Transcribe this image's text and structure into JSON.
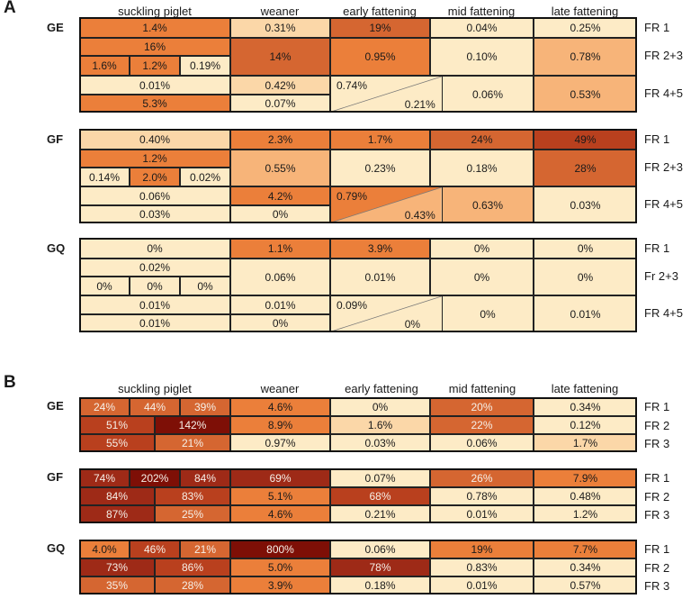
{
  "panels": {
    "A": {
      "letter": "A",
      "columns": [
        "suckling piglet",
        "weaner",
        "early fattening",
        "mid fattening",
        "late fattening"
      ],
      "groups": [
        {
          "title": "GE",
          "row_labels": [
            "FR 1",
            "FR 2+3",
            "FR 4+5"
          ],
          "cells": [
            "1.4%",
            "0.31%",
            "19%",
            "0.04%",
            "0.25%",
            "16%",
            "1.6%",
            "1.2%",
            "0.19%",
            "14%",
            "0.95%",
            "0.10%",
            "0.78%",
            "0.01%",
            "5.3%",
            "0.42%",
            "0.07%",
            "0.74%",
            "0.21%",
            "0.06%",
            "0.53%"
          ]
        },
        {
          "title": "GF",
          "row_labels": [
            "FR 1",
            "FR 2+3",
            "FR 4+5"
          ],
          "cells": [
            "0.40%",
            "2.3%",
            "1.7%",
            "24%",
            "49%",
            "1.2%",
            "0.14%",
            "2.0%",
            "0.02%",
            "0.55%",
            "0.23%",
            "0.18%",
            "28%",
            "0.06%",
            "0.03%",
            "4.2%",
            "0%",
            "0.79%",
            "0.43%",
            "0.63%",
            "0.03%"
          ]
        },
        {
          "title": "GQ",
          "row_labels": [
            "FR 1",
            "Fr 2+3",
            "FR 4+5"
          ],
          "cells": [
            "0%",
            "1.1%",
            "3.9%",
            "0%",
            "0%",
            "0.02%",
            "0%",
            "0%",
            "0%",
            "0.06%",
            "0.01%",
            "0%",
            "0%",
            "0.01%",
            "0.01%",
            "0.01%",
            "0%",
            "0.09%",
            "0%",
            "0%",
            "0.01%"
          ]
        }
      ]
    },
    "B": {
      "letter": "B",
      "columns": [
        "suckling piglet",
        "weaner",
        "early fattening",
        "mid fattening",
        "late fattening"
      ],
      "groups": [
        {
          "title": "GE",
          "row_labels": [
            "FR 1",
            "FR 2",
            "FR 3"
          ],
          "cells": [
            "24%",
            "44%",
            "39%",
            "4.6%",
            "0%",
            "20%",
            "0.34%",
            "51%",
            "142%",
            "8.9%",
            "1.6%",
            "22%",
            "0.12%",
            "55%",
            "21%",
            "0.97%",
            "0.03%",
            "0.06%",
            "1.7%"
          ]
        },
        {
          "title": "GF",
          "row_labels": [
            "FR 1",
            "FR 2",
            "FR 3"
          ],
          "cells": [
            "74%",
            "202%",
            "84%",
            "69%",
            "0.07%",
            "26%",
            "7.9%",
            "84%",
            "83%",
            "5.1%",
            "68%",
            "0.78%",
            "0.48%",
            "87%",
            "25%",
            "4.6%",
            "0.21%",
            "0.01%",
            "1.2%"
          ]
        },
        {
          "title": "GQ",
          "row_labels": [
            "FR 1",
            "FR 2",
            "FR 3"
          ],
          "cells": [
            "4.0%",
            "46%",
            "21%",
            "800%",
            "0.06%",
            "19%",
            "7.7%",
            "73%",
            "86%",
            "5.0%",
            "78%",
            "0.83%",
            "0.34%",
            "35%",
            "28%",
            "3.9%",
            "0.18%",
            "0.01%",
            "0.57%"
          ]
        }
      ]
    }
  },
  "colors": {
    "cream": "#fdebc6",
    "pale": "#fbd7a8",
    "light": "#f7b479",
    "mid": "#f08f45",
    "orange": "#eb7f3a",
    "deep": "#d56631",
    "rust": "#b9401e",
    "brown": "#9e2a17",
    "maroon": "#7e0f06",
    "border": "#111111"
  }
}
